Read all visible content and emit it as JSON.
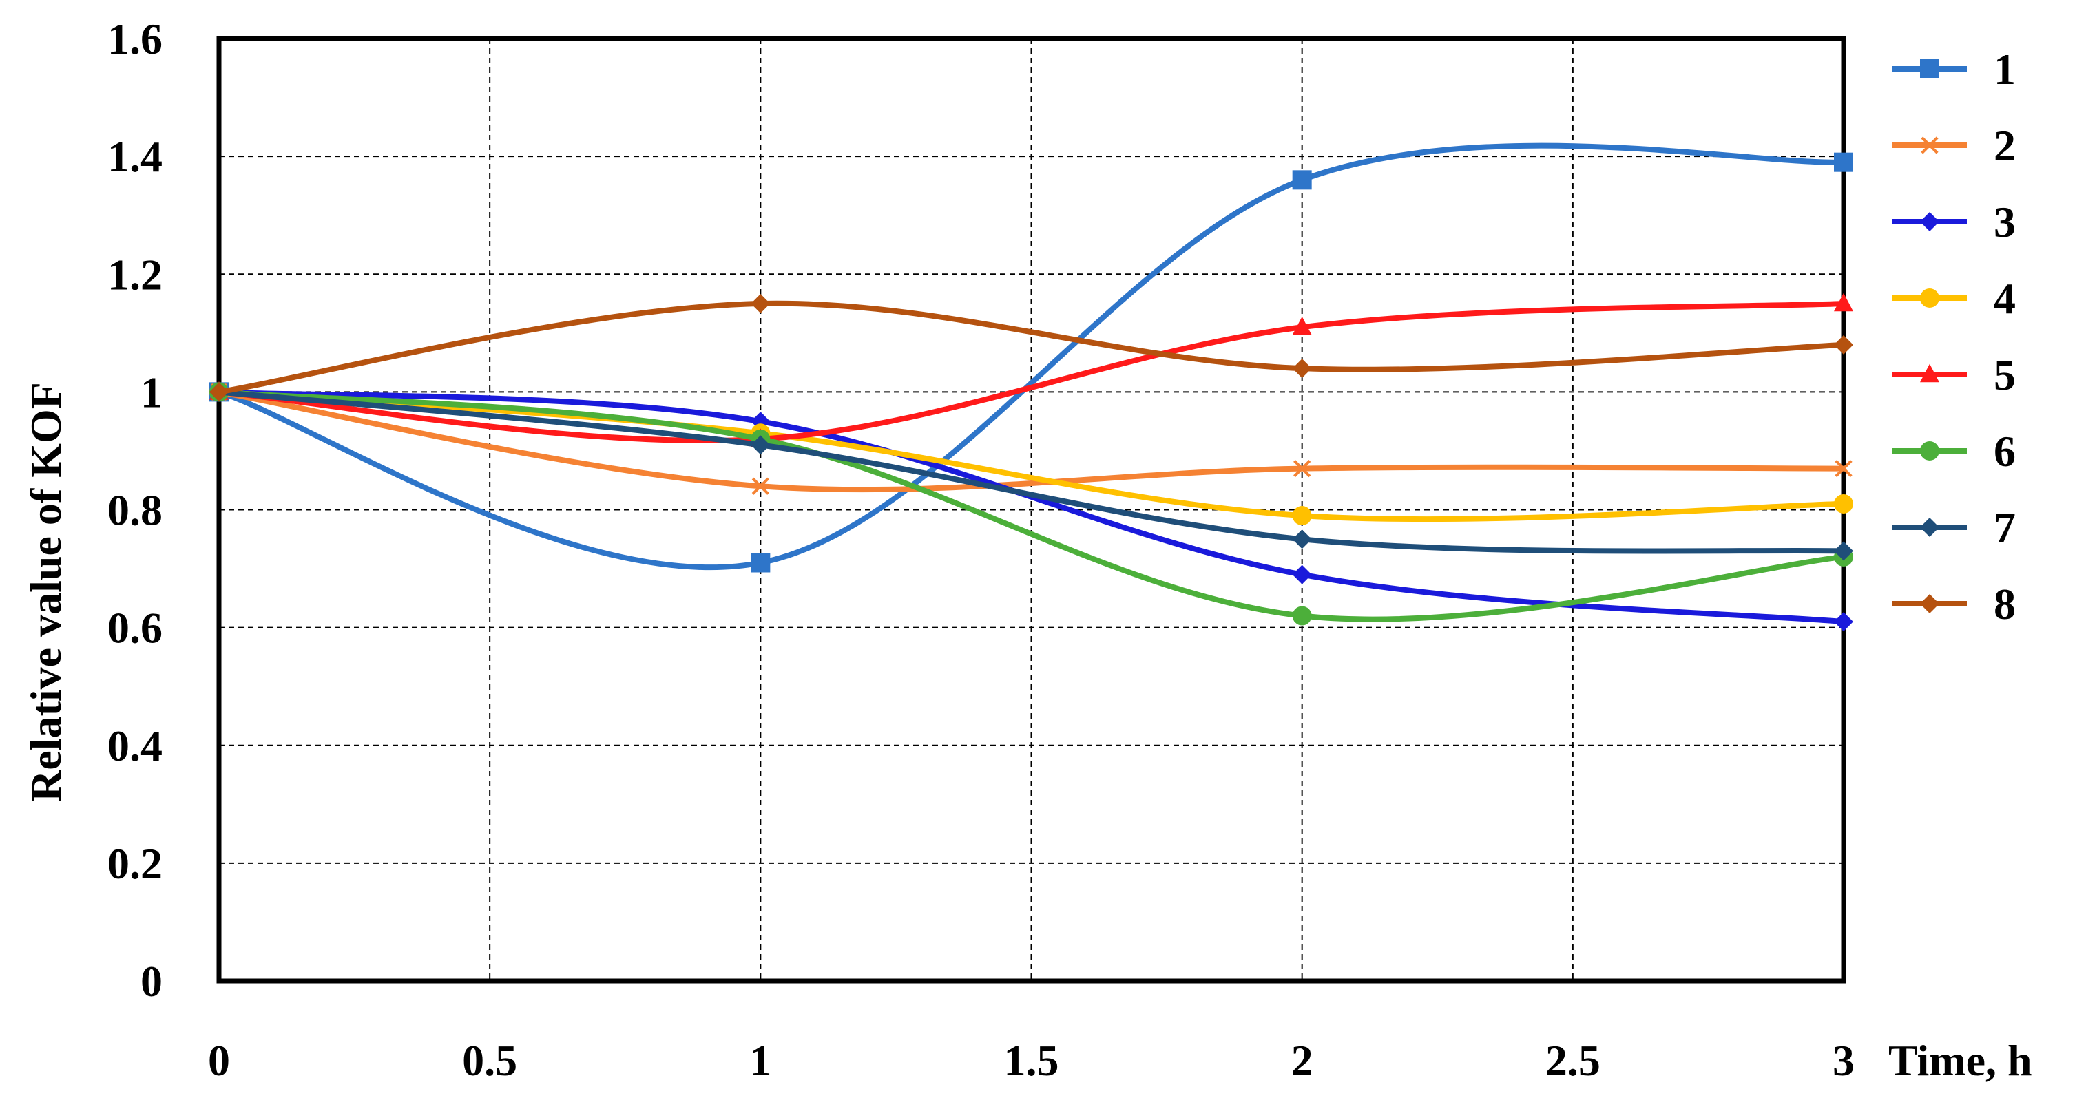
{
  "chart_data": {
    "type": "line",
    "title": "",
    "xlabel": "Time, h",
    "ylabel": "Relative value of KOF",
    "xlim": [
      0,
      3
    ],
    "ylim": [
      0,
      1.6
    ],
    "x_ticks": [
      "0",
      "0.5",
      "1",
      "1.5",
      "2",
      "2.5",
      "3"
    ],
    "y_ticks": [
      "0",
      "0.2",
      "0.4",
      "0.6",
      "0.8",
      "1",
      "1.2",
      "1.4",
      "1.6"
    ],
    "x_tick_values": [
      0,
      0.5,
      1,
      1.5,
      2,
      2.5,
      3
    ],
    "y_tick_values": [
      0,
      0.2,
      0.4,
      0.6,
      0.8,
      1.0,
      1.2,
      1.4,
      1.6
    ],
    "grid": true,
    "smooth": true,
    "legend_position": "right",
    "x": [
      0,
      1,
      2,
      3
    ],
    "series": [
      {
        "name": "1",
        "values": [
          1.0,
          0.71,
          1.36,
          1.39
        ],
        "color": "#2E75C9",
        "marker": "square"
      },
      {
        "name": "2",
        "values": [
          1.0,
          0.84,
          0.87,
          0.87
        ],
        "color": "#F58233",
        "marker": "x"
      },
      {
        "name": "3",
        "values": [
          1.0,
          0.95,
          0.69,
          0.61
        ],
        "color": "#1A1ADB",
        "marker": "diamond"
      },
      {
        "name": "4",
        "values": [
          1.0,
          0.93,
          0.79,
          0.81
        ],
        "color": "#FFC000",
        "marker": "circle"
      },
      {
        "name": "5",
        "values": [
          1.0,
          0.92,
          1.11,
          1.15
        ],
        "color": "#FF1A1A",
        "marker": "triangle"
      },
      {
        "name": "6",
        "values": [
          1.0,
          0.92,
          0.62,
          0.72
        ],
        "color": "#4CAF3A",
        "marker": "circle"
      },
      {
        "name": "7",
        "values": [
          1.0,
          0.91,
          0.75,
          0.73
        ],
        "color": "#1F4E79",
        "marker": "diamond"
      },
      {
        "name": "8",
        "values": [
          1.0,
          1.15,
          1.04,
          1.08
        ],
        "color": "#B5520F",
        "marker": "diamond"
      }
    ]
  }
}
